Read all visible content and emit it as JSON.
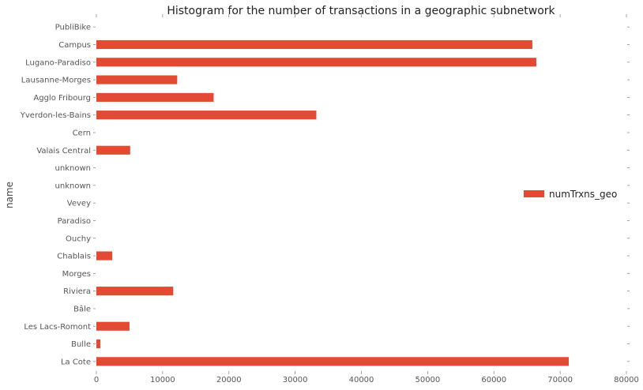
{
  "chart_data": {
    "type": "bar",
    "orientation": "horizontal",
    "title": "Histogram for the number of transactions in a geographic subnetwork",
    "ylabel": "name",
    "xlabel": "",
    "categories": [
      "PubliBike",
      "Campus",
      "Lugano-Paradiso",
      "Lausanne-Morges",
      "Agglo Fribourg",
      "Yverdon-les-Bains",
      "Cern",
      "Valais Central",
      "unknown",
      "unknown",
      "Vevey",
      "Paradiso",
      "Ouchy",
      "Chablais",
      "Morges",
      "Riviera",
      "Bâle",
      "Les Lacs-Romont",
      "Bulle",
      "La Cote"
    ],
    "series": [
      {
        "name": "numTrxns_geo",
        "color": "#e24a33",
        "values": [
          0,
          65800,
          66400,
          12200,
          17700,
          33200,
          0,
          5100,
          0,
          0,
          0,
          0,
          0,
          2400,
          0,
          11600,
          0,
          5000,
          600,
          71300
        ]
      }
    ],
    "xlim": [
      0,
      80000
    ],
    "xticks": [
      0,
      10000,
      20000,
      30000,
      40000,
      50000,
      60000,
      70000,
      80000
    ],
    "xtick_labels": [
      "0",
      "10000",
      "20000",
      "30000",
      "40000",
      "50000",
      "60000",
      "70000",
      "80000"
    ],
    "legend": "center-right",
    "grid": false
  }
}
